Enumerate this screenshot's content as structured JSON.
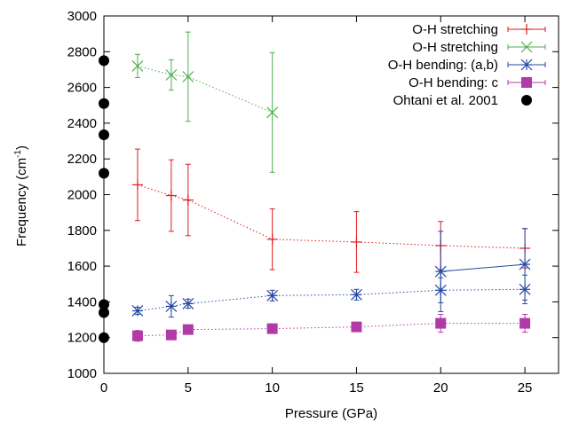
{
  "chart_data": {
    "type": "scatter",
    "title": "",
    "xlabel": "Pressure (GPa)",
    "ylabel": "Frequency (cm-1)",
    "ylabel_parts": {
      "base": "Frequency (cm",
      "sup": "-1",
      "tail": ")"
    },
    "xlim": [
      0,
      27
    ],
    "ylim": [
      1000,
      3000
    ],
    "x_ticks": [
      0,
      5,
      10,
      15,
      20,
      25
    ],
    "y_ticks": [
      1000,
      1200,
      1400,
      1600,
      1800,
      2000,
      2200,
      2400,
      2600,
      2800,
      3000
    ],
    "legend_position": "top-right",
    "grid": false,
    "series": [
      {
        "name": "O-H stretching",
        "color": "#e41a1c",
        "marker": "plus",
        "line": "dotted",
        "points": [
          {
            "x": 2,
            "y": 2055,
            "err": 200
          },
          {
            "x": 4,
            "y": 1995,
            "err": 200
          },
          {
            "x": 5,
            "y": 1970,
            "err": 200
          },
          {
            "x": 10,
            "y": 1750,
            "err": 170
          },
          {
            "x": 15,
            "y": 1735,
            "err": 170
          },
          {
            "x": 20,
            "y": 1715,
            "err": 135
          },
          {
            "x": 25,
            "y": 1700,
            "err": 110
          }
        ]
      },
      {
        "name": "O-H stretching",
        "color": "#4daf4a",
        "marker": "cross",
        "line": "dotted",
        "points": [
          {
            "x": 2,
            "y": 2720,
            "err": 65
          },
          {
            "x": 4,
            "y": 2670,
            "err": 85
          },
          {
            "x": 5,
            "y": 2660,
            "err": 250
          },
          {
            "x": 10,
            "y": 2460,
            "err": 335
          }
        ]
      },
      {
        "name": "O-H bending: (a,b)",
        "color": "#2548a3",
        "marker": "star",
        "line": "dotted",
        "points": [
          {
            "x": 2,
            "y": 1350,
            "err": 20
          },
          {
            "x": 4,
            "y": 1375,
            "err": 60
          },
          {
            "x": 5,
            "y": 1390,
            "err": 25
          },
          {
            "x": 10,
            "y": 1435,
            "err": 30
          },
          {
            "x": 15,
            "y": 1440,
            "err": 30
          },
          {
            "x": 20,
            "y": 1465,
            "err": 70
          },
          {
            "x": 25,
            "y": 1470,
            "err": 80
          }
        ],
        "extra_line": {
          "style": "solid",
          "points": [
            {
              "x": 20,
              "y": 1570,
              "err": 225
            },
            {
              "x": 25,
              "y": 1610,
              "err": 200
            }
          ]
        }
      },
      {
        "name": "O-H bending: c",
        "color": "#b23aa7",
        "marker": "square",
        "line": "dotted",
        "points": [
          {
            "x": 2,
            "y": 1210,
            "err": 30
          },
          {
            "x": 4,
            "y": 1215,
            "err": 25
          },
          {
            "x": 5,
            "y": 1245,
            "err": 15
          },
          {
            "x": 10,
            "y": 1250,
            "err": 15
          },
          {
            "x": 15,
            "y": 1260,
            "err": 15
          },
          {
            "x": 20,
            "y": 1280,
            "err": 50
          },
          {
            "x": 25,
            "y": 1280,
            "err": 50
          }
        ]
      },
      {
        "name": "Ohtani et al. 2001",
        "color": "#000000",
        "marker": "circle",
        "line": "none",
        "points": [
          {
            "x": 0,
            "y": 2750
          },
          {
            "x": 0,
            "y": 2510
          },
          {
            "x": 0,
            "y": 2335
          },
          {
            "x": 0,
            "y": 2120
          },
          {
            "x": 0,
            "y": 1385
          },
          {
            "x": 0,
            "y": 1340
          },
          {
            "x": 0,
            "y": 1200
          }
        ]
      }
    ]
  }
}
